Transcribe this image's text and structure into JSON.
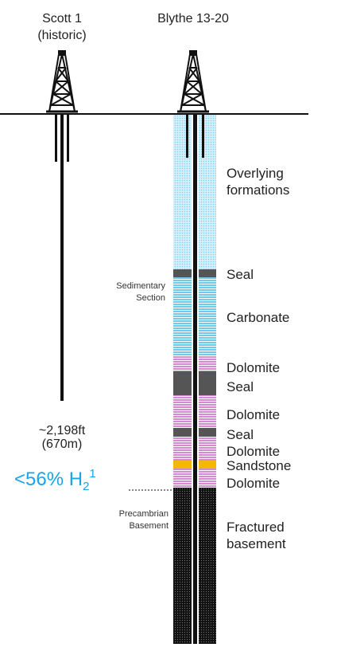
{
  "wells": [
    {
      "label": "Scott 1",
      "sublabel": "(historic)",
      "depth": "~2,198ft",
      "depth_metric": "(670m)"
    },
    {
      "label": "Blythe 13-20"
    }
  ],
  "sections": [
    {
      "lines": [
        "Sedimentary",
        "Section"
      ]
    },
    {
      "lines": [
        "Precambrian",
        "Basement"
      ]
    }
  ],
  "formations": [
    {
      "lines": [
        "Overlying",
        "formations"
      ]
    },
    {
      "lines": [
        "Seal"
      ]
    },
    {
      "lines": [
        "Carbonate"
      ]
    },
    {
      "lines": [
        "Dolomite"
      ]
    },
    {
      "lines": [
        "Seal"
      ]
    },
    {
      "lines": [
        "Dolomite"
      ]
    },
    {
      "lines": [
        "Seal"
      ]
    },
    {
      "lines": [
        "Dolomite"
      ]
    },
    {
      "lines": [
        "Sandstone"
      ]
    },
    {
      "lines": [
        "Dolomite"
      ]
    },
    {
      "lines": [
        "Fractured",
        "basement"
      ]
    }
  ],
  "callout": {
    "text": "<56% H",
    "subscript": "2",
    "superscript": "1"
  }
}
